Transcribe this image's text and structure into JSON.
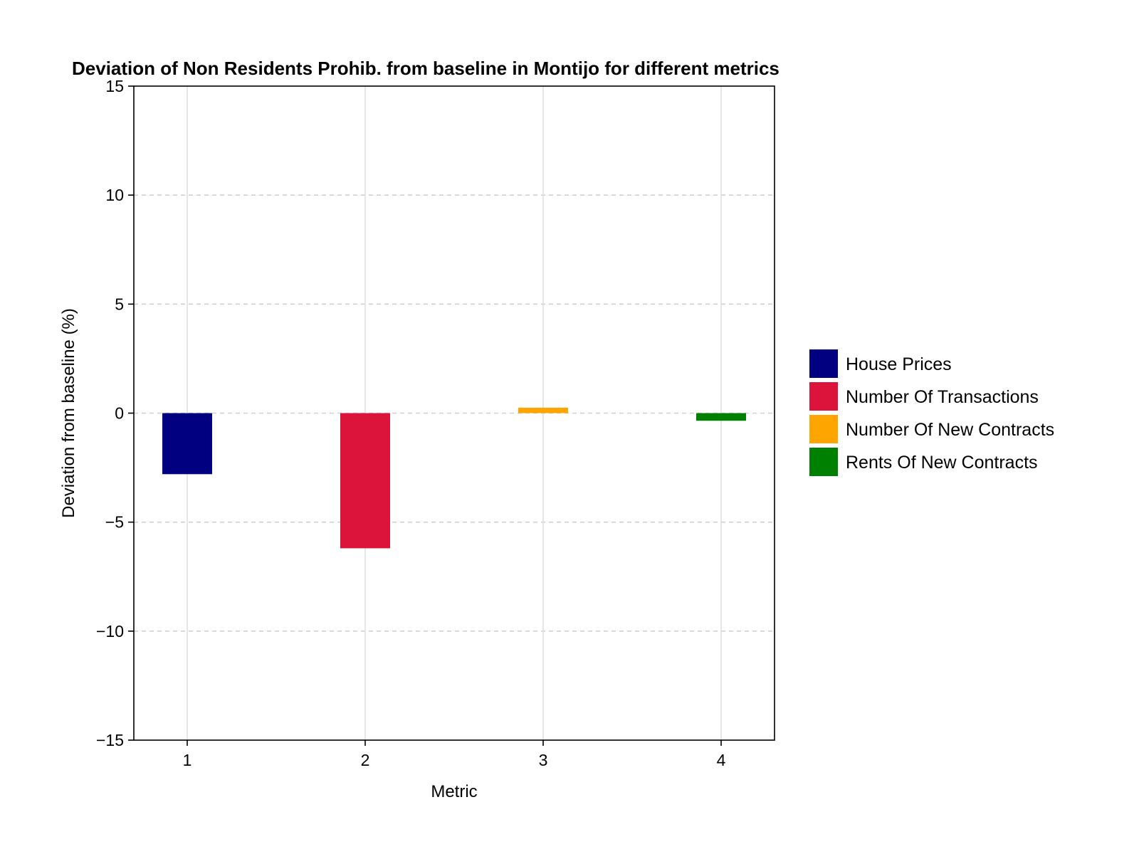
{
  "chart_data": {
    "type": "bar",
    "title": "Deviation of Non Residents Prohib. from baseline in Montijo for different metrics",
    "xlabel": "Metric",
    "ylabel": "Deviation from baseline (%)",
    "categories": [
      1,
      2,
      3,
      4
    ],
    "x_tick_labels": [
      "1",
      "2",
      "3",
      "4"
    ],
    "ylim": [
      -15,
      15
    ],
    "y_ticks": [
      -15,
      -10,
      -5,
      0,
      5,
      10,
      15
    ],
    "y_tick_labels": [
      "−15",
      "−10",
      "−5",
      "0",
      "5",
      "10",
      "15"
    ],
    "grid": true,
    "legend_position": "right",
    "series": [
      {
        "name": "House Prices",
        "x": 1,
        "value": -2.8,
        "color": "#000080"
      },
      {
        "name": "Number Of Transactions",
        "x": 2,
        "value": -6.2,
        "color": "#DC143C"
      },
      {
        "name": "Number Of New Contracts",
        "x": 3,
        "value": 0.25,
        "color": "#FFA500"
      },
      {
        "name": "Rents Of New Contracts",
        "x": 4,
        "value": -0.35,
        "color": "#008000"
      }
    ]
  }
}
